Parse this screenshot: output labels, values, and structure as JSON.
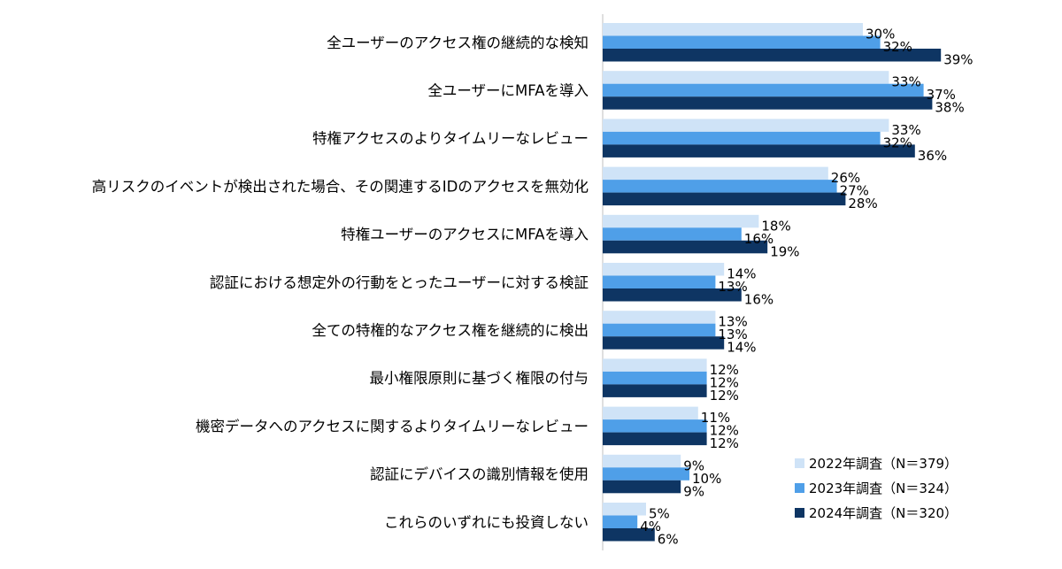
{
  "chart_data": {
    "type": "bar",
    "orientation": "horizontal",
    "title": "",
    "xlabel": "",
    "ylabel": "",
    "xlim": [
      0,
      40
    ],
    "grid": false,
    "legend_position": "bottom-right",
    "value_suffix": "%",
    "categories": [
      "全ユーザーのアクセス権の継続的な検知",
      "全ユーザーにMFAを導入",
      "特権アクセスのよりタイムリーなレビュー",
      "高リスクのイベントが検出された場合、その関連するIDのアクセスを無効化",
      "特権ユーザーのアクセスにMFAを導入",
      "認証における想定外の行動をとったユーザーに対する検証",
      "全ての特権的なアクセス権を継続的に検出",
      "最小権限原則に基づく権限の付与",
      "機密データへのアクセスに関するよりタイムリーなレビュー",
      "認証にデバイスの識別情報を使用",
      "これらのいずれにも投資しない"
    ],
    "series": [
      {
        "name": "2022年調査（N＝379）",
        "color": "#cfe3f7",
        "values": [
          30,
          33,
          33,
          26,
          18,
          14,
          13,
          12,
          11,
          9,
          5
        ]
      },
      {
        "name": "2023年調査（N＝324）",
        "color": "#4f9fe8",
        "values": [
          32,
          37,
          32,
          27,
          16,
          13,
          13,
          12,
          12,
          10,
          4
        ]
      },
      {
        "name": "2024年調査（N＝320）",
        "color": "#0e3563",
        "values": [
          39,
          38,
          36,
          28,
          19,
          16,
          14,
          12,
          12,
          9,
          6
        ]
      }
    ]
  }
}
